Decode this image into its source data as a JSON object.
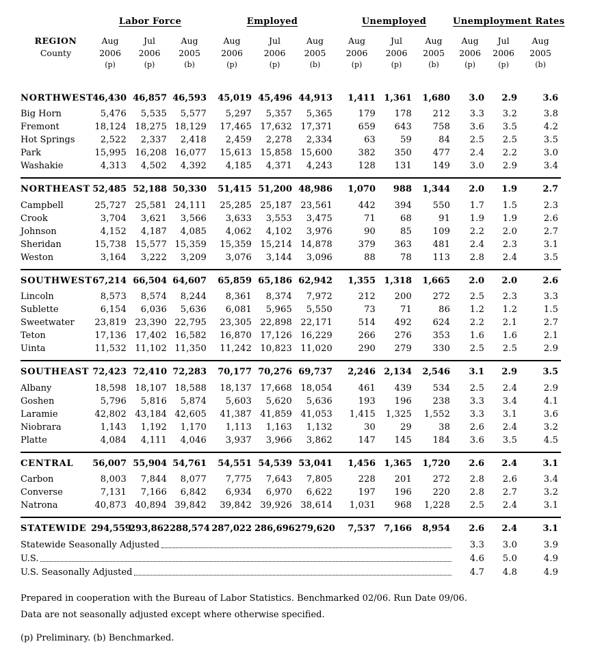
{
  "colors": {
    "text": "#000000",
    "background": "#ffffff",
    "rule": "#000000"
  },
  "header": {
    "region_label": "REGION",
    "county_label": "County",
    "groups": [
      {
        "label": "Labor Force"
      },
      {
        "label": "Employed"
      },
      {
        "label": "Unemployed"
      },
      {
        "label": "Unemployment Rates"
      }
    ],
    "period_months": [
      "Aug",
      "Jul",
      "Aug"
    ],
    "period_years": [
      "2006",
      "2006",
      "2005"
    ],
    "period_marks": [
      "(p)",
      "(p)",
      "(b)"
    ]
  },
  "sections": [
    {
      "region": "NORTHWEST",
      "totals": [
        "46,430",
        "46,857",
        "46,593",
        "45,019",
        "45,496",
        "44,913",
        "1,411",
        "1,361",
        "1,680",
        "3.0",
        "2.9",
        "3.6"
      ],
      "counties": [
        {
          "name": "Big Horn",
          "values": [
            "5,476",
            "5,535",
            "5,577",
            "5,297",
            "5,357",
            "5,365",
            "179",
            "178",
            "212",
            "3.3",
            "3.2",
            "3.8"
          ]
        },
        {
          "name": "Fremont",
          "values": [
            "18,124",
            "18,275",
            "18,129",
            "17,465",
            "17,632",
            "17,371",
            "659",
            "643",
            "758",
            "3.6",
            "3.5",
            "4.2"
          ]
        },
        {
          "name": "Hot Springs",
          "values": [
            "2,522",
            "2,337",
            "2,418",
            "2,459",
            "2,278",
            "2,334",
            "63",
            "59",
            "84",
            "2.5",
            "2.5",
            "3.5"
          ]
        },
        {
          "name": "Park",
          "values": [
            "15,995",
            "16,208",
            "16,077",
            "15,613",
            "15,858",
            "15,600",
            "382",
            "350",
            "477",
            "2.4",
            "2.2",
            "3.0"
          ]
        },
        {
          "name": "Washakie",
          "values": [
            "4,313",
            "4,502",
            "4,392",
            "4,185",
            "4,371",
            "4,243",
            "128",
            "131",
            "149",
            "3.0",
            "2.9",
            "3.4"
          ]
        }
      ]
    },
    {
      "region": "NORTHEAST",
      "totals": [
        "52,485",
        "52,188",
        "50,330",
        "51,415",
        "51,200",
        "48,986",
        "1,070",
        "988",
        "1,344",
        "2.0",
        "1.9",
        "2.7"
      ],
      "counties": [
        {
          "name": "Campbell",
          "values": [
            "25,727",
            "25,581",
            "24,111",
            "25,285",
            "25,187",
            "23,561",
            "442",
            "394",
            "550",
            "1.7",
            "1.5",
            "2.3"
          ]
        },
        {
          "name": "Crook",
          "values": [
            "3,704",
            "3,621",
            "3,566",
            "3,633",
            "3,553",
            "3,475",
            "71",
            "68",
            "91",
            "1.9",
            "1.9",
            "2.6"
          ]
        },
        {
          "name": "Johnson",
          "values": [
            "4,152",
            "4,187",
            "4,085",
            "4,062",
            "4,102",
            "3,976",
            "90",
            "85",
            "109",
            "2.2",
            "2.0",
            "2.7"
          ]
        },
        {
          "name": "Sheridan",
          "values": [
            "15,738",
            "15,577",
            "15,359",
            "15,359",
            "15,214",
            "14,878",
            "379",
            "363",
            "481",
            "2.4",
            "2.3",
            "3.1"
          ]
        },
        {
          "name": "Weston",
          "values": [
            "3,164",
            "3,222",
            "3,209",
            "3,076",
            "3,144",
            "3,096",
            "88",
            "78",
            "113",
            "2.8",
            "2.4",
            "3.5"
          ]
        }
      ]
    },
    {
      "region": "SOUTHWEST",
      "totals": [
        "67,214",
        "66,504",
        "64,607",
        "65,859",
        "65,186",
        "62,942",
        "1,355",
        "1,318",
        "1,665",
        "2.0",
        "2.0",
        "2.6"
      ],
      "counties": [
        {
          "name": "Lincoln",
          "values": [
            "8,573",
            "8,574",
            "8,244",
            "8,361",
            "8,374",
            "7,972",
            "212",
            "200",
            "272",
            "2.5",
            "2.3",
            "3.3"
          ]
        },
        {
          "name": "Sublette",
          "values": [
            "6,154",
            "6,036",
            "5,636",
            "6,081",
            "5,965",
            "5,550",
            "73",
            "71",
            "86",
            "1.2",
            "1.2",
            "1.5"
          ]
        },
        {
          "name": "Sweetwater",
          "values": [
            "23,819",
            "23,390",
            "22,795",
            "23,305",
            "22,898",
            "22,171",
            "514",
            "492",
            "624",
            "2.2",
            "2.1",
            "2.7"
          ]
        },
        {
          "name": "Teton",
          "values": [
            "17,136",
            "17,402",
            "16,582",
            "16,870",
            "17,126",
            "16,229",
            "266",
            "276",
            "353",
            "1.6",
            "1.6",
            "2.1"
          ]
        },
        {
          "name": "Uinta",
          "values": [
            "11,532",
            "11,102",
            "11,350",
            "11,242",
            "10,823",
            "11,020",
            "290",
            "279",
            "330",
            "2.5",
            "2.5",
            "2.9"
          ]
        }
      ]
    },
    {
      "region": "SOUTHEAST",
      "totals": [
        "72,423",
        "72,410",
        "72,283",
        "70,177",
        "70,276",
        "69,737",
        "2,246",
        "2,134",
        "2,546",
        "3.1",
        "2.9",
        "3.5"
      ],
      "counties": [
        {
          "name": "Albany",
          "values": [
            "18,598",
            "18,107",
            "18,588",
            "18,137",
            "17,668",
            "18,054",
            "461",
            "439",
            "534",
            "2.5",
            "2.4",
            "2.9"
          ]
        },
        {
          "name": "Goshen",
          "values": [
            "5,796",
            "5,816",
            "5,874",
            "5,603",
            "5,620",
            "5,636",
            "193",
            "196",
            "238",
            "3.3",
            "3.4",
            "4.1"
          ]
        },
        {
          "name": "Laramie",
          "values": [
            "42,802",
            "43,184",
            "42,605",
            "41,387",
            "41,859",
            "41,053",
            "1,415",
            "1,325",
            "1,552",
            "3.3",
            "3.1",
            "3.6"
          ]
        },
        {
          "name": "Niobrara",
          "values": [
            "1,143",
            "1,192",
            "1,170",
            "1,113",
            "1,163",
            "1,132",
            "30",
            "29",
            "38",
            "2.6",
            "2.4",
            "3.2"
          ]
        },
        {
          "name": "Platte",
          "values": [
            "4,084",
            "4,111",
            "4,046",
            "3,937",
            "3,966",
            "3,862",
            "147",
            "145",
            "184",
            "3.6",
            "3.5",
            "4.5"
          ]
        }
      ]
    },
    {
      "region": "CENTRAL",
      "totals": [
        "56,007",
        "55,904",
        "54,761",
        "54,551",
        "54,539",
        "53,041",
        "1,456",
        "1,365",
        "1,720",
        "2.6",
        "2.4",
        "3.1"
      ],
      "counties": [
        {
          "name": "Carbon",
          "values": [
            "8,003",
            "7,844",
            "8,077",
            "7,775",
            "7,643",
            "7,805",
            "228",
            "201",
            "272",
            "2.8",
            "2.6",
            "3.4"
          ]
        },
        {
          "name": "Converse",
          "values": [
            "7,131",
            "7,166",
            "6,842",
            "6,934",
            "6,970",
            "6,622",
            "197",
            "196",
            "220",
            "2.8",
            "2.7",
            "3.2"
          ]
        },
        {
          "name": "Natrona",
          "values": [
            "40,873",
            "40,894",
            "39,842",
            "39,842",
            "39,926",
            "38,614",
            "1,031",
            "968",
            "1,228",
            "2.5",
            "2.4",
            "3.1"
          ]
        }
      ]
    }
  ],
  "statewide": {
    "region": "STATEWIDE",
    "totals": [
      "294,559",
      "293,862",
      "288,574",
      "287,022",
      "286,696",
      "279,620",
      "7,537",
      "7,166",
      "8,954",
      "2.6",
      "2.4",
      "3.1"
    ],
    "adjusted_rows": [
      {
        "label": "Statewide Seasonally Adjusted",
        "rates": [
          "3.3",
          "3.0",
          "3.9"
        ]
      },
      {
        "label": "U.S.",
        "rates": [
          "4.6",
          "5.0",
          "4.9"
        ]
      },
      {
        "label": "U.S. Seasonally Adjusted",
        "rates": [
          "4.7",
          "4.8",
          "4.9"
        ]
      }
    ]
  },
  "footnotes": {
    "prepared": "Prepared in cooperation with the Bureau of Labor Statistics. Benchmarked 02/06. Run Date 09/06.",
    "data_note": "Data are not seasonally adjusted except where otherwise specified.",
    "legend": "(p) Preliminary.   (b) Benchmarked."
  }
}
